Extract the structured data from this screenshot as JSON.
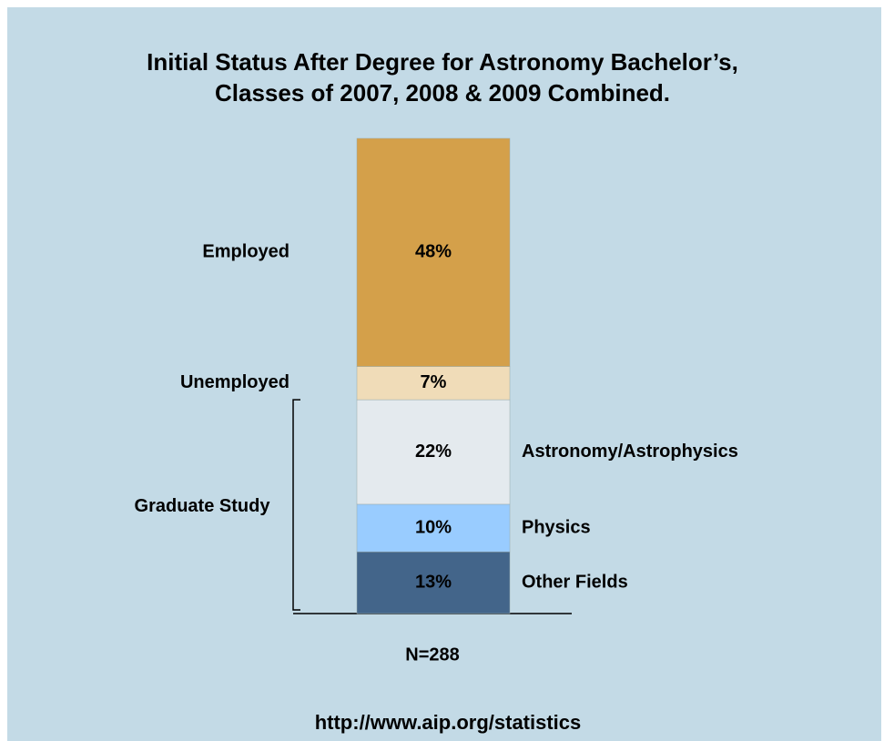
{
  "chart_data": {
    "type": "stacked_bar",
    "title": [
      "Initial Status After Degree for Astronomy Bachelor’s,",
      "Classes of 2007, 2008 & 2009 Combined."
    ],
    "series": [
      {
        "name": "Employed",
        "color": "#d4a04a",
        "values": [
          48
        ],
        "value_labels": [
          "48%"
        ],
        "label_side": "left",
        "label_color": "#000000"
      },
      {
        "name": "Unemployed",
        "color": "#f0dcb8",
        "values": [
          7
        ],
        "value_labels": [
          "7%"
        ],
        "label_side": "left",
        "label_color": "#000000"
      },
      {
        "name": "Astronomy/Astrophysics",
        "color": "#e4eaee",
        "values": [
          22
        ],
        "value_labels": [
          "22%"
        ],
        "label_side": "right",
        "label_color": "#000000"
      },
      {
        "name": "Physics",
        "color": "#99ccff",
        "values": [
          10
        ],
        "value_labels": [
          "10%"
        ],
        "label_side": "right",
        "label_color": "#000000"
      },
      {
        "name": "Other Fields",
        "color": "#43658a",
        "values": [
          13
        ],
        "value_labels": [
          "13%"
        ],
        "label_side": "right",
        "label_color": "#ffffff"
      }
    ],
    "groups": [
      {
        "label": "Graduate Study",
        "members": [
          2,
          3,
          4
        ]
      }
    ],
    "note": "N=288",
    "source": "http://www.aip.org/statistics"
  }
}
